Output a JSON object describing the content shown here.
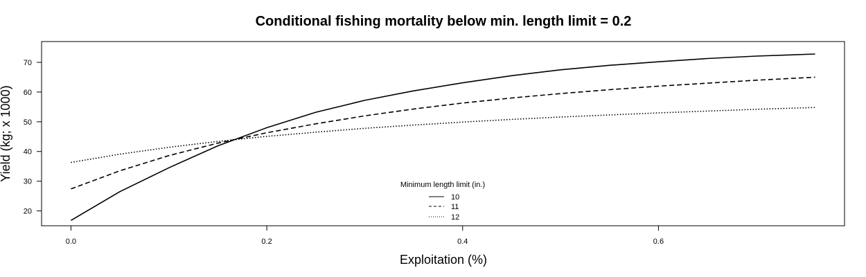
{
  "chart_data": {
    "type": "line",
    "title": "Conditional fishing mortality below min. length limit = 0.2",
    "xlabel": "Exploitation (%)",
    "ylabel": "Yield (kg; x 1000)",
    "xlim": [
      -0.03,
      0.79
    ],
    "ylim": [
      15,
      77
    ],
    "x_ticks": [
      "0.0",
      "0.2",
      "0.4",
      "0.6"
    ],
    "y_ticks": [
      "20",
      "30",
      "40",
      "50",
      "60",
      "70"
    ],
    "grid": false,
    "legend": {
      "title": "Minimum length limit (in.)",
      "placement": "bottom-center",
      "entries": [
        "10",
        "11",
        "12"
      ]
    },
    "series": [
      {
        "name": "10",
        "line_style": "solid",
        "x": [
          0.0,
          0.05,
          0.1,
          0.15,
          0.2,
          0.25,
          0.3,
          0.35,
          0.4,
          0.45,
          0.5,
          0.55,
          0.6,
          0.65,
          0.7,
          0.76
        ],
        "values": [
          16.8,
          26.5,
          34.5,
          41.9,
          48.0,
          53.2,
          57.2,
          60.4,
          63.1,
          65.5,
          67.5,
          69.0,
          70.2,
          71.3,
          72.1,
          72.8
        ]
      },
      {
        "name": "11",
        "line_style": "dashed",
        "x": [
          0.0,
          0.05,
          0.1,
          0.15,
          0.2,
          0.25,
          0.3,
          0.35,
          0.4,
          0.45,
          0.5,
          0.55,
          0.6,
          0.65,
          0.7,
          0.76
        ],
        "values": [
          27.4,
          33.5,
          38.6,
          42.8,
          46.3,
          49.3,
          52.0,
          54.3,
          56.3,
          58.0,
          59.5,
          60.8,
          62.0,
          63.0,
          64.0,
          65.0
        ]
      },
      {
        "name": "12",
        "line_style": "dotted",
        "x": [
          0.0,
          0.05,
          0.1,
          0.15,
          0.2,
          0.25,
          0.3,
          0.35,
          0.4,
          0.45,
          0.5,
          0.55,
          0.6,
          0.65,
          0.7,
          0.76
        ],
        "values": [
          36.3,
          39.1,
          41.4,
          43.4,
          45.1,
          46.5,
          47.8,
          48.9,
          49.9,
          50.8,
          51.6,
          52.3,
          53.0,
          53.6,
          54.2,
          54.8
        ]
      }
    ]
  }
}
